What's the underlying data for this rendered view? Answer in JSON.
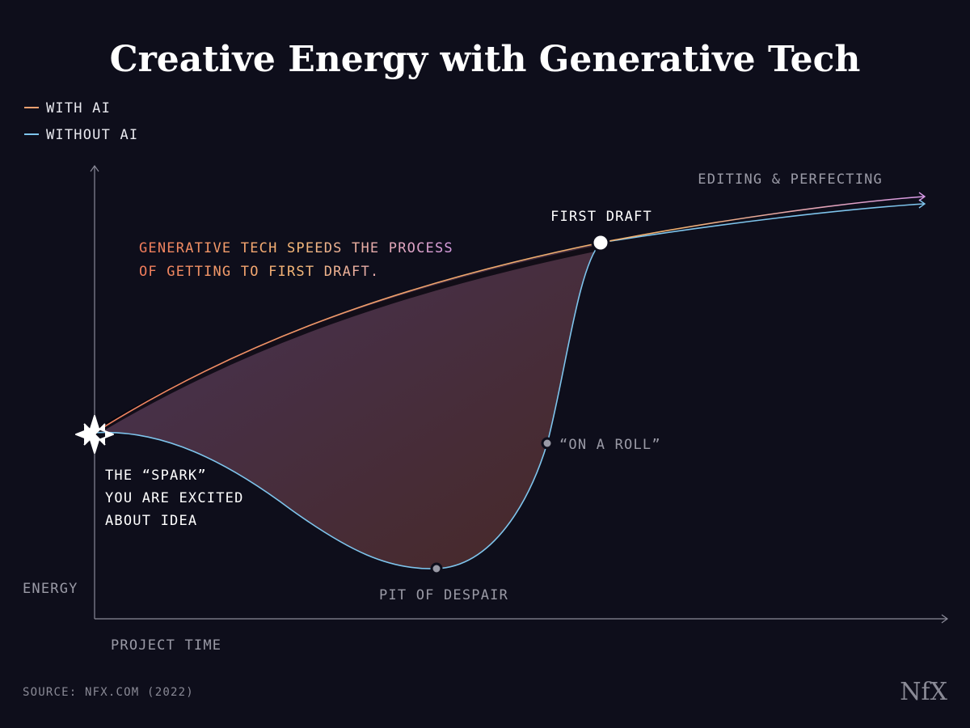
{
  "header": {
    "title": "Creative Energy with Generative Tech"
  },
  "legend": {
    "items": [
      {
        "name": "WITH AI",
        "color": "#f0a070"
      },
      {
        "name": "WITHOUT AI",
        "color": "#7ec4ec"
      }
    ]
  },
  "axes": {
    "y_label": "ENERGY",
    "x_label": "PROJECT TIME"
  },
  "annotations": {
    "editing": "EDITING & PERFECTING",
    "first_draft": "FIRST DRAFT",
    "speeds": {
      "line1": [
        "GENERATIVE",
        "TECH",
        "SPEEDS",
        "THE",
        "PROCESS"
      ],
      "line2": [
        "OF",
        "GETTING",
        "TO",
        "FIRST",
        "DRAFT."
      ]
    },
    "spark": [
      "THE “SPARK”",
      "YOU ARE EXCITED",
      "ABOUT IDEA"
    ],
    "on_a_roll": "“ON A ROLL”",
    "pit": "PIT OF DESPAIR"
  },
  "footer": {
    "source": "SOURCE: NFX.COM (2022)",
    "logo": "NfX"
  }
}
